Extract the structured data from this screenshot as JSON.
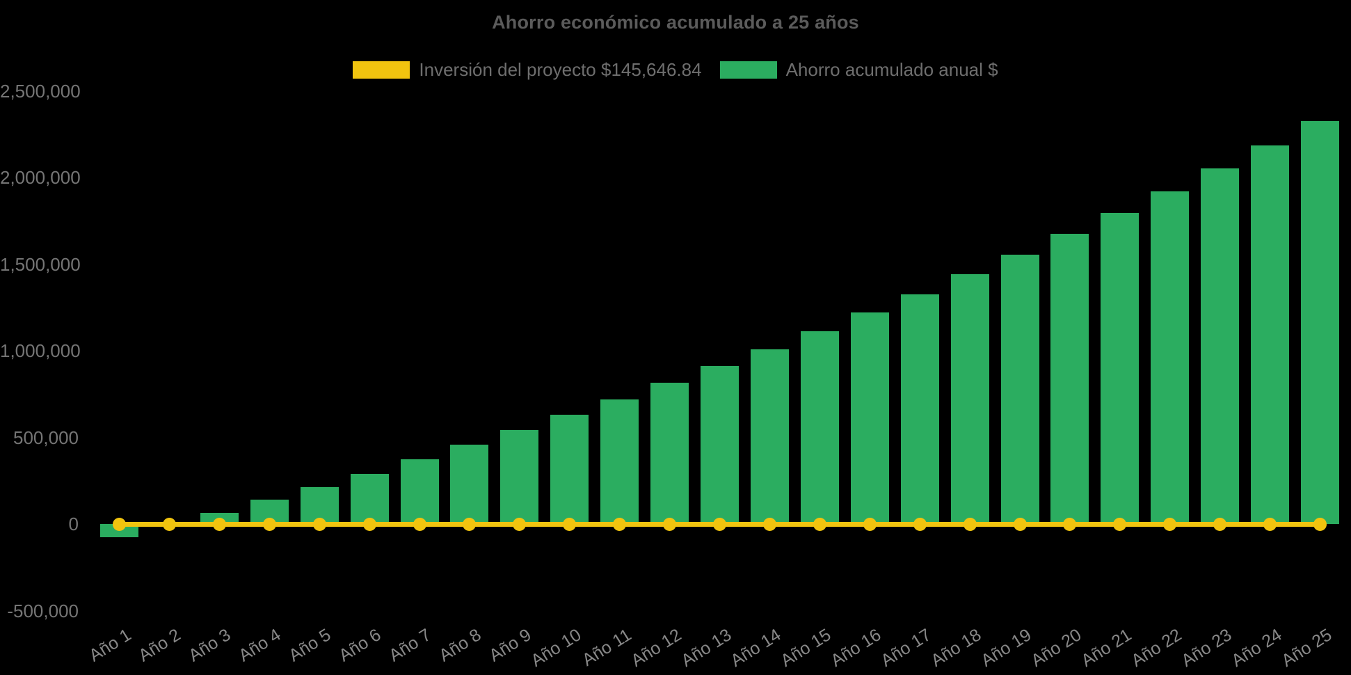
{
  "chart_data": {
    "type": "bar",
    "title": "Ahorro económico acumulado a 25 años",
    "categories": [
      "Año 1",
      "Año 2",
      "Año 3",
      "Año 4",
      "Año 5",
      "Año 6",
      "Año 7",
      "Año 8",
      "Año 9",
      "Año 10",
      "Año 11",
      "Año 12",
      "Año 13",
      "Año 14",
      "Año 15",
      "Año 16",
      "Año 17",
      "Año 18",
      "Año 19",
      "Año 20",
      "Año 21",
      "Año 22",
      "Año 23",
      "Año 24",
      "Año 25"
    ],
    "series": [
      {
        "name": "Inversión del proyecto $145,646.84",
        "type": "line",
        "color": "#F1C40F",
        "marker": "circle",
        "constant_value": 0
      },
      {
        "name": "Ahorro acumulado anual $",
        "type": "bar",
        "color": "#2BAD60",
        "values": [
          -78000,
          -8000,
          64000,
          139000,
          214000,
          291000,
          373000,
          457000,
          544000,
          630000,
          720000,
          815000,
          911000,
          1009000,
          1114000,
          1220000,
          1327000,
          1440000,
          1553000,
          1673000,
          1794000,
          1919000,
          2051000,
          2185000,
          2327000
        ]
      }
    ],
    "xlabel": "",
    "ylabel": "",
    "ylim": [
      -500000,
      2500000
    ],
    "y_ticks": {
      "values": [
        2500000,
        2000000,
        1500000,
        1000000,
        500000,
        0,
        -500000
      ],
      "labels": [
        "2,500,000",
        "2,000,000",
        "1,500,000",
        "1,000,000",
        "500,000",
        "0",
        "-500,000"
      ]
    },
    "grid": false,
    "legend_position": "top",
    "colors": {
      "background": "#000000",
      "title_text": "#5B5B5B",
      "legend_text": "#6E6E6E",
      "y_tick_text": "#757575",
      "x_tick_text": "#888888"
    }
  }
}
